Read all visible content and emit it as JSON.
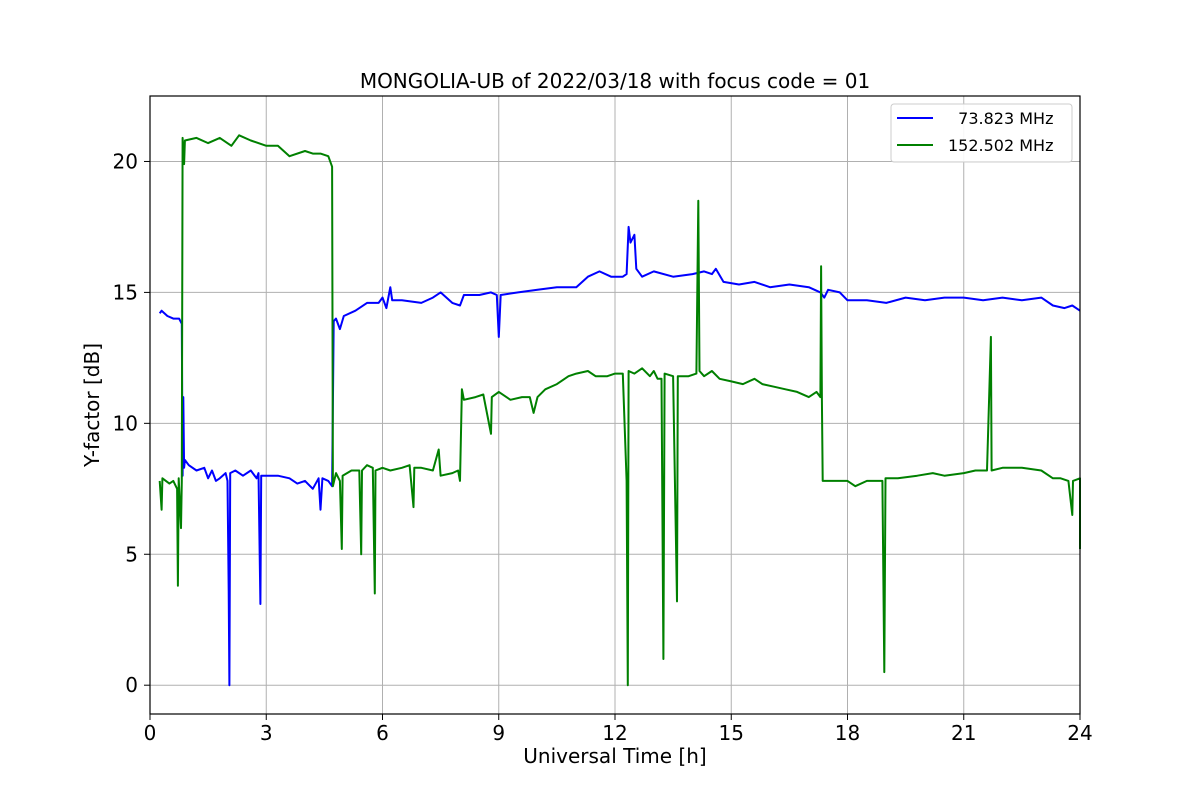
{
  "chart_data": {
    "type": "line",
    "title": "MONGOLIA-UB of 2022/03/18 with focus code = 01",
    "xlabel": "Universal Time [h]",
    "ylabel": "Y-factor [dB]",
    "xlim": [
      0,
      24
    ],
    "ylim": [
      -1.1,
      22.5
    ],
    "xticks": [
      0,
      3,
      6,
      9,
      12,
      15,
      18,
      21,
      24
    ],
    "yticks": [
      0,
      5,
      10,
      15,
      20
    ],
    "grid": true,
    "legend_position": "upper right",
    "series": [
      {
        "name": "  73.823 MHz",
        "color": "#0000ff",
        "points": [
          [
            0.25,
            14.2
          ],
          [
            0.3,
            14.3
          ],
          [
            0.45,
            14.1
          ],
          [
            0.6,
            14.0
          ],
          [
            0.75,
            14.0
          ],
          [
            0.82,
            13.8
          ],
          [
            0.84,
            8.0
          ],
          [
            0.86,
            11.0
          ],
          [
            0.88,
            8.3
          ],
          [
            0.9,
            8.6
          ],
          [
            1.0,
            8.4
          ],
          [
            1.2,
            8.2
          ],
          [
            1.4,
            8.3
          ],
          [
            1.5,
            7.9
          ],
          [
            1.6,
            8.2
          ],
          [
            1.7,
            7.8
          ],
          [
            1.8,
            7.9
          ],
          [
            1.95,
            8.1
          ],
          [
            2.0,
            7.8
          ],
          [
            2.03,
            3.6
          ],
          [
            2.05,
            0.0
          ],
          [
            2.07,
            8.1
          ],
          [
            2.2,
            8.2
          ],
          [
            2.4,
            8.0
          ],
          [
            2.6,
            8.2
          ],
          [
            2.75,
            7.9
          ],
          [
            2.8,
            8.1
          ],
          [
            2.85,
            3.1
          ],
          [
            2.87,
            8.0
          ],
          [
            3.0,
            8.0
          ],
          [
            3.3,
            8.0
          ],
          [
            3.6,
            7.9
          ],
          [
            3.8,
            7.7
          ],
          [
            4.0,
            7.8
          ],
          [
            4.2,
            7.5
          ],
          [
            4.35,
            7.9
          ],
          [
            4.4,
            6.7
          ],
          [
            4.45,
            7.9
          ],
          [
            4.6,
            7.8
          ],
          [
            4.7,
            7.6
          ],
          [
            4.74,
            13.9
          ],
          [
            4.8,
            14.0
          ],
          [
            4.9,
            13.6
          ],
          [
            5.0,
            14.1
          ],
          [
            5.3,
            14.3
          ],
          [
            5.6,
            14.6
          ],
          [
            5.9,
            14.6
          ],
          [
            6.0,
            14.8
          ],
          [
            6.1,
            14.4
          ],
          [
            6.2,
            15.2
          ],
          [
            6.25,
            14.7
          ],
          [
            6.5,
            14.7
          ],
          [
            7.0,
            14.6
          ],
          [
            7.3,
            14.8
          ],
          [
            7.5,
            15.0
          ],
          [
            7.8,
            14.6
          ],
          [
            8.0,
            14.5
          ],
          [
            8.1,
            14.9
          ],
          [
            8.5,
            14.9
          ],
          [
            8.8,
            15.0
          ],
          [
            8.95,
            14.9
          ],
          [
            9.0,
            13.3
          ],
          [
            9.05,
            14.9
          ],
          [
            9.5,
            15.0
          ],
          [
            10.0,
            15.1
          ],
          [
            10.5,
            15.2
          ],
          [
            11.0,
            15.2
          ],
          [
            11.3,
            15.6
          ],
          [
            11.6,
            15.8
          ],
          [
            11.9,
            15.6
          ],
          [
            12.2,
            15.6
          ],
          [
            12.3,
            15.7
          ],
          [
            12.35,
            17.5
          ],
          [
            12.4,
            16.9
          ],
          [
            12.5,
            17.2
          ],
          [
            12.55,
            15.9
          ],
          [
            12.7,
            15.6
          ],
          [
            13.0,
            15.8
          ],
          [
            13.5,
            15.6
          ],
          [
            14.0,
            15.7
          ],
          [
            14.3,
            15.8
          ],
          [
            14.5,
            15.7
          ],
          [
            14.6,
            15.9
          ],
          [
            14.8,
            15.4
          ],
          [
            15.2,
            15.3
          ],
          [
            15.6,
            15.4
          ],
          [
            16.0,
            15.2
          ],
          [
            16.5,
            15.3
          ],
          [
            17.0,
            15.2
          ],
          [
            17.3,
            15.0
          ],
          [
            17.4,
            14.8
          ],
          [
            17.5,
            15.1
          ],
          [
            17.8,
            15.0
          ],
          [
            18.0,
            14.7
          ],
          [
            18.5,
            14.7
          ],
          [
            19.0,
            14.6
          ],
          [
            19.5,
            14.8
          ],
          [
            20.0,
            14.7
          ],
          [
            20.5,
            14.8
          ],
          [
            21.0,
            14.8
          ],
          [
            21.5,
            14.7
          ],
          [
            22.0,
            14.8
          ],
          [
            22.5,
            14.7
          ],
          [
            23.0,
            14.8
          ],
          [
            23.3,
            14.5
          ],
          [
            23.6,
            14.4
          ],
          [
            23.8,
            14.5
          ],
          [
            24.0,
            14.3
          ]
        ]
      },
      {
        "name": "152.502 MHz",
        "color": "#008000",
        "points": [
          [
            0.25,
            7.8
          ],
          [
            0.3,
            6.7
          ],
          [
            0.32,
            7.9
          ],
          [
            0.5,
            7.7
          ],
          [
            0.6,
            7.8
          ],
          [
            0.7,
            7.5
          ],
          [
            0.72,
            3.8
          ],
          [
            0.74,
            7.9
          ],
          [
            0.8,
            6.0
          ],
          [
            0.82,
            7.8
          ],
          [
            0.84,
            20.9
          ],
          [
            0.88,
            19.9
          ],
          [
            0.9,
            20.8
          ],
          [
            1.2,
            20.9
          ],
          [
            1.5,
            20.7
          ],
          [
            1.8,
            20.9
          ],
          [
            2.1,
            20.6
          ],
          [
            2.3,
            21.0
          ],
          [
            2.6,
            20.8
          ],
          [
            3.0,
            20.6
          ],
          [
            3.3,
            20.6
          ],
          [
            3.6,
            20.2
          ],
          [
            4.0,
            20.4
          ],
          [
            4.2,
            20.3
          ],
          [
            4.4,
            20.3
          ],
          [
            4.6,
            20.2
          ],
          [
            4.7,
            19.8
          ],
          [
            4.72,
            7.6
          ],
          [
            4.8,
            8.1
          ],
          [
            4.9,
            7.8
          ],
          [
            4.95,
            5.2
          ],
          [
            4.97,
            8.0
          ],
          [
            5.2,
            8.2
          ],
          [
            5.4,
            8.2
          ],
          [
            5.45,
            5.0
          ],
          [
            5.47,
            8.2
          ],
          [
            5.6,
            8.4
          ],
          [
            5.75,
            8.3
          ],
          [
            5.8,
            3.5
          ],
          [
            5.82,
            8.2
          ],
          [
            6.0,
            8.3
          ],
          [
            6.2,
            8.2
          ],
          [
            6.5,
            8.3
          ],
          [
            6.7,
            8.4
          ],
          [
            6.8,
            6.8
          ],
          [
            6.82,
            8.3
          ],
          [
            7.0,
            8.3
          ],
          [
            7.3,
            8.2
          ],
          [
            7.45,
            9.0
          ],
          [
            7.5,
            8.0
          ],
          [
            7.8,
            8.1
          ],
          [
            7.95,
            8.2
          ],
          [
            8.0,
            7.8
          ],
          [
            8.05,
            11.3
          ],
          [
            8.1,
            10.9
          ],
          [
            8.4,
            11.0
          ],
          [
            8.6,
            11.1
          ],
          [
            8.8,
            9.6
          ],
          [
            8.82,
            11.0
          ],
          [
            9.0,
            11.2
          ],
          [
            9.3,
            10.9
          ],
          [
            9.6,
            11.0
          ],
          [
            9.8,
            11.0
          ],
          [
            9.9,
            10.4
          ],
          [
            10.0,
            11.0
          ],
          [
            10.2,
            11.3
          ],
          [
            10.5,
            11.5
          ],
          [
            10.8,
            11.8
          ],
          [
            11.0,
            11.9
          ],
          [
            11.3,
            12.0
          ],
          [
            11.5,
            11.8
          ],
          [
            11.8,
            11.8
          ],
          [
            12.0,
            11.9
          ],
          [
            12.2,
            11.9
          ],
          [
            12.3,
            7.8
          ],
          [
            12.33,
            0.0
          ],
          [
            12.35,
            12.0
          ],
          [
            12.5,
            11.9
          ],
          [
            12.7,
            12.1
          ],
          [
            12.9,
            11.8
          ],
          [
            13.0,
            12.0
          ],
          [
            13.1,
            11.7
          ],
          [
            13.2,
            11.7
          ],
          [
            13.25,
            1.0
          ],
          [
            13.28,
            11.9
          ],
          [
            13.5,
            11.8
          ],
          [
            13.6,
            3.2
          ],
          [
            13.62,
            11.8
          ],
          [
            13.9,
            11.8
          ],
          [
            14.1,
            11.9
          ],
          [
            14.15,
            18.5
          ],
          [
            14.18,
            12.0
          ],
          [
            14.3,
            11.8
          ],
          [
            14.5,
            12.0
          ],
          [
            14.7,
            11.7
          ],
          [
            15.0,
            11.6
          ],
          [
            15.3,
            11.5
          ],
          [
            15.6,
            11.7
          ],
          [
            15.8,
            11.5
          ],
          [
            16.1,
            11.4
          ],
          [
            16.4,
            11.3
          ],
          [
            16.7,
            11.2
          ],
          [
            17.0,
            11.0
          ],
          [
            17.2,
            11.2
          ],
          [
            17.3,
            11.0
          ],
          [
            17.32,
            16.0
          ],
          [
            17.34,
            10.9
          ],
          [
            17.36,
            7.8
          ],
          [
            17.5,
            7.8
          ],
          [
            17.8,
            7.8
          ],
          [
            18.0,
            7.8
          ],
          [
            18.2,
            7.6
          ],
          [
            18.5,
            7.8
          ],
          [
            18.9,
            7.8
          ],
          [
            18.95,
            0.5
          ],
          [
            18.98,
            7.9
          ],
          [
            19.3,
            7.9
          ],
          [
            19.8,
            8.0
          ],
          [
            20.2,
            8.1
          ],
          [
            20.5,
            8.0
          ],
          [
            21.0,
            8.1
          ],
          [
            21.3,
            8.2
          ],
          [
            21.6,
            8.2
          ],
          [
            21.7,
            13.3
          ],
          [
            21.72,
            8.2
          ],
          [
            22.0,
            8.3
          ],
          [
            22.5,
            8.3
          ],
          [
            23.0,
            8.2
          ],
          [
            23.3,
            7.9
          ],
          [
            23.5,
            7.9
          ],
          [
            23.7,
            7.8
          ],
          [
            23.8,
            6.5
          ],
          [
            23.82,
            7.8
          ],
          [
            24.0,
            7.9
          ],
          [
            24.0,
            5.2
          ]
        ]
      }
    ]
  }
}
